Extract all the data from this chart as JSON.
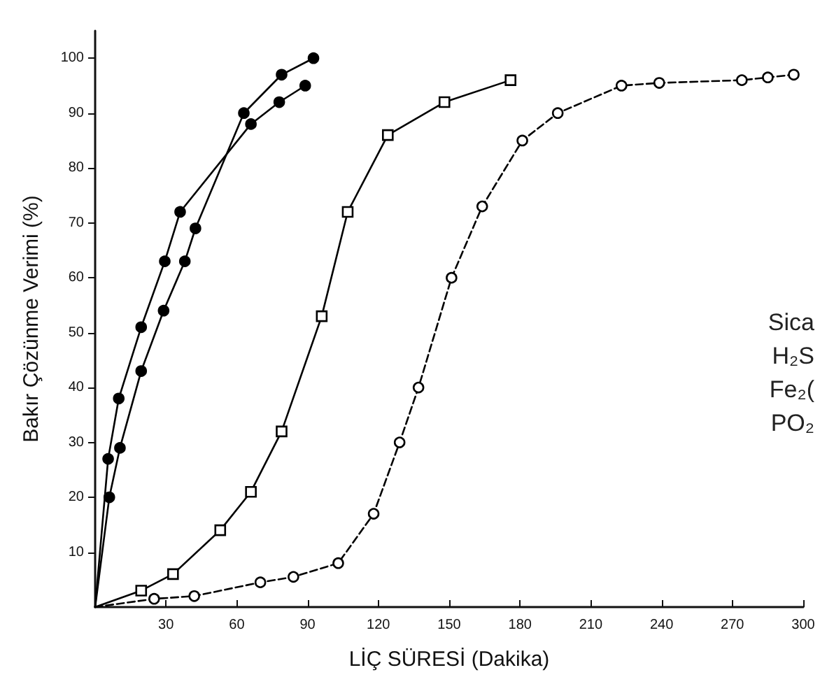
{
  "chart_data": {
    "type": "line",
    "xlabel": "LİÇ SÜRESİ (Dakika)",
    "ylabel": "Bakır Çözünme Verimi (%)",
    "xlim": [
      0,
      300
    ],
    "ylim": [
      0,
      105
    ],
    "xticks": [
      30,
      60,
      90,
      120,
      150,
      180,
      210,
      240,
      270,
      300
    ],
    "yticks": [
      10,
      20,
      30,
      40,
      50,
      60,
      70,
      80,
      90,
      100
    ],
    "grid": false,
    "annotations": [
      "Sica",
      "H₂S",
      "Fe₂(",
      "PO₂"
    ],
    "series": [
      {
        "color": "#000000",
        "marker": "circle",
        "line_style": "solid",
        "x": [
          0,
          5.5,
          10,
          19.5,
          29.5,
          36,
          66,
          78,
          89
        ],
        "values": [
          0,
          27,
          38,
          51,
          63,
          72,
          88,
          92,
          95
        ]
      },
      {
        "color": "#000000",
        "marker": "circle",
        "line_style": "solid",
        "x": [
          0,
          6,
          10.5,
          19.5,
          29,
          38,
          42.5,
          63,
          79,
          92.5
        ],
        "values": [
          0,
          20,
          29,
          43,
          54,
          63,
          69,
          90,
          97,
          100
        ]
      },
      {
        "color": "#000000",
        "marker": "square",
        "line_style": "solid",
        "x": [
          0,
          19.5,
          33,
          53,
          66,
          79,
          96,
          107,
          124,
          148,
          176
        ],
        "values": [
          0,
          3,
          6,
          14,
          21,
          32,
          53,
          72,
          86,
          92,
          96
        ]
      },
      {
        "color": "#000000",
        "marker": "circle",
        "line_style": "dashed",
        "x": [
          0,
          25,
          42,
          70,
          84,
          103,
          118,
          129,
          137,
          151,
          164,
          181,
          196,
          223,
          239,
          274,
          285,
          296
        ],
        "values": [
          0,
          1.5,
          2,
          4.5,
          5.5,
          8,
          17,
          30,
          40,
          60,
          73,
          85,
          90,
          95,
          95.5,
          96,
          96.5,
          97
        ]
      }
    ]
  }
}
